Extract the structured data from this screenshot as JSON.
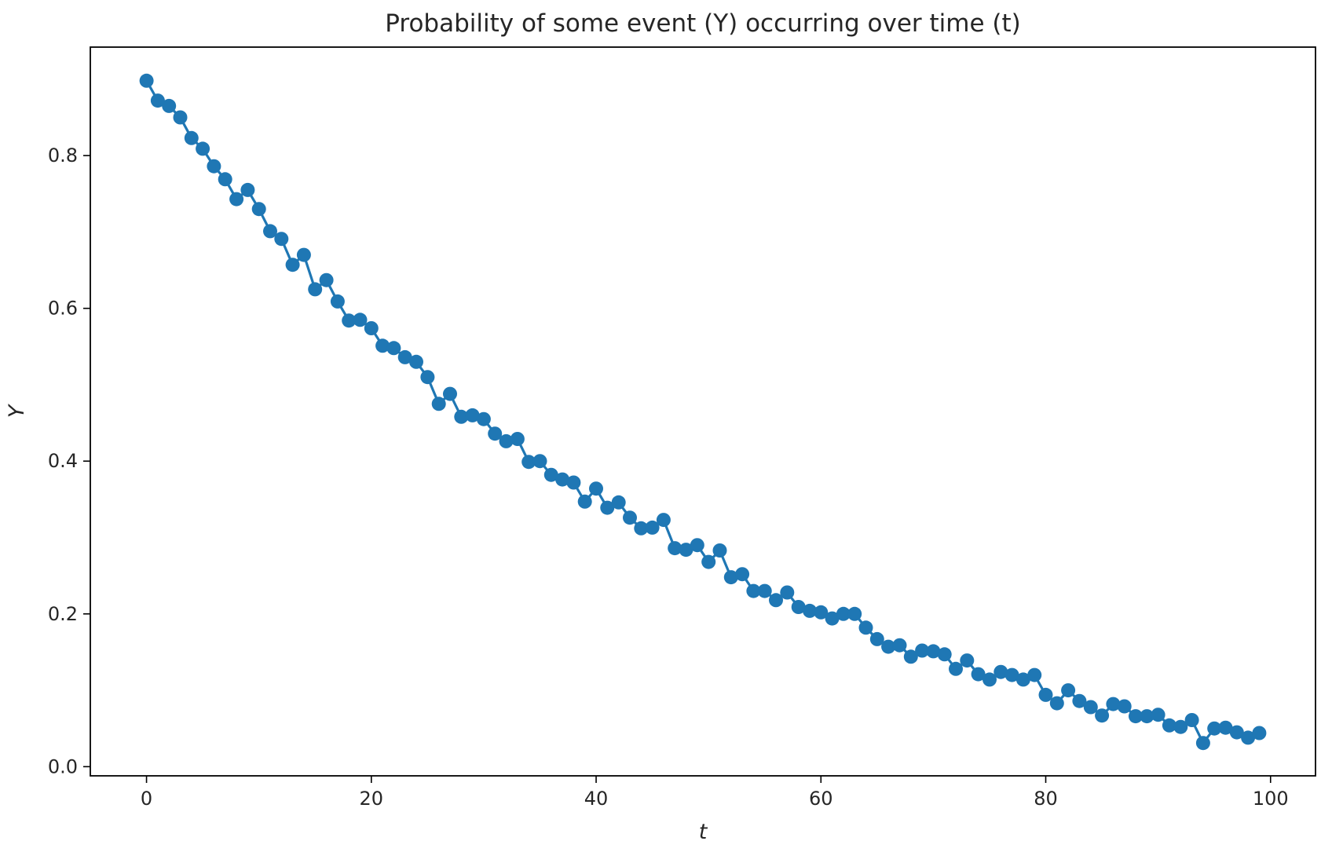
{
  "chart_data": {
    "type": "line",
    "title": "Probability of some event (Y) occurring over time (t)",
    "xlabel": "t",
    "ylabel": "Y",
    "xlim": [
      -5,
      104
    ],
    "ylim": [
      -0.012,
      0.942
    ],
    "xticks": [
      0,
      20,
      40,
      60,
      80,
      100
    ],
    "xtick_labels": [
      "0",
      "20",
      "40",
      "60",
      "80",
      "100"
    ],
    "yticks": [
      0.0,
      0.2,
      0.4,
      0.6,
      0.8
    ],
    "ytick_labels": [
      "0.0",
      "0.2",
      "0.4",
      "0.6",
      "0.8"
    ],
    "grid": false,
    "legend": "none",
    "marker": "circle",
    "color": "#1f77b4",
    "series": [
      {
        "x": [
          0,
          1,
          2,
          3,
          4,
          5,
          6,
          7,
          8,
          9,
          10,
          11,
          12,
          13,
          14,
          15,
          16,
          17,
          18,
          19,
          20,
          21,
          22,
          23,
          24,
          25,
          26,
          27,
          28,
          29,
          30,
          31,
          32,
          33,
          34,
          35,
          36,
          37,
          38,
          39,
          40,
          41,
          42,
          43,
          44,
          45,
          46,
          47,
          48,
          49,
          50,
          51,
          52,
          53,
          54,
          55,
          56,
          57,
          58,
          59,
          60,
          61,
          62,
          63,
          64,
          65,
          66,
          67,
          68,
          69,
          70,
          71,
          72,
          73,
          74,
          75,
          76,
          77,
          78,
          79,
          80,
          81,
          82,
          83,
          84,
          85,
          86,
          87,
          88,
          89,
          90,
          91,
          92,
          93,
          94,
          95,
          96,
          97,
          98,
          99
        ],
        "y": [
          0.898,
          0.872,
          0.865,
          0.85,
          0.823,
          0.809,
          0.786,
          0.769,
          0.743,
          0.755,
          0.73,
          0.701,
          0.691,
          0.657,
          0.67,
          0.625,
          0.637,
          0.609,
          0.584,
          0.585,
          0.574,
          0.551,
          0.548,
          0.536,
          0.53,
          0.51,
          0.475,
          0.488,
          0.458,
          0.46,
          0.455,
          0.436,
          0.426,
          0.429,
          0.399,
          0.4,
          0.382,
          0.376,
          0.372,
          0.347,
          0.364,
          0.339,
          0.346,
          0.326,
          0.312,
          0.313,
          0.323,
          0.286,
          0.284,
          0.29,
          0.268,
          0.283,
          0.248,
          0.252,
          0.23,
          0.23,
          0.218,
          0.228,
          0.209,
          0.204,
          0.202,
          0.194,
          0.2,
          0.2,
          0.182,
          0.167,
          0.157,
          0.159,
          0.144,
          0.152,
          0.151,
          0.147,
          0.128,
          0.139,
          0.121,
          0.114,
          0.124,
          0.12,
          0.114,
          0.12,
          0.094,
          0.083,
          0.1,
          0.086,
          0.078,
          0.067,
          0.082,
          0.079,
          0.066,
          0.066,
          0.068,
          0.054,
          0.052,
          0.061,
          0.031,
          0.05,
          0.051,
          0.045,
          0.038,
          0.044
        ]
      }
    ]
  }
}
